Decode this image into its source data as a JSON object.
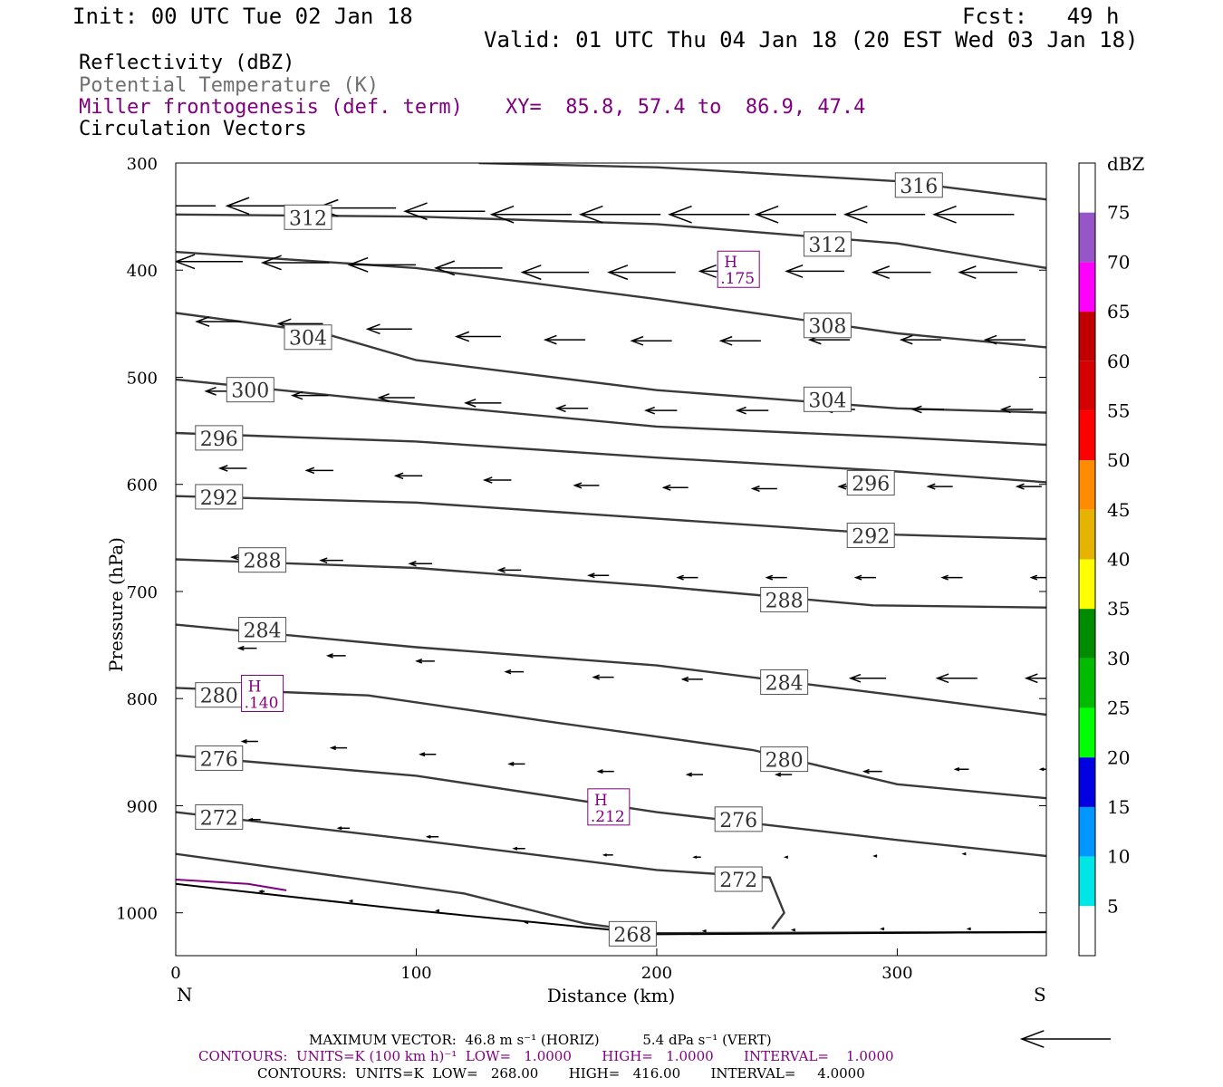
{
  "header": {
    "init": "Init: 00 UTC Tue 02 Jan 18",
    "fcst": "Fcst:   49 h",
    "valid": "Valid: 01 UTC Thu 04 Jan 18 (20 EST Wed 03 Jan 18)"
  },
  "fields": {
    "reflectivity": "Reflectivity (dBZ)",
    "theta": "Potential Temperature (K)",
    "frontogenesis": "Miller frontogenesis (def. term)",
    "xy": "XY=  85.8, 57.4 to  86.9, 47.4",
    "vectors": "Circulation Vectors"
  },
  "footer": {
    "max_vector": "MAXIMUM VECTOR:  46.8 m s⁻¹ (HORIZ)          5.4 dPa s⁻¹ (VERT)",
    "contours_fg": "CONTOURS:  UNITS=K (100 km h)⁻¹  LOW=   1.0000       HIGH=   1.0000       INTERVAL=    1.0000",
    "contours_theta": "CONTOURS:  UNITS=K  LOW=   268.00       HIGH=   416.00       INTERVAL=     4.0000"
  },
  "colors": {
    "axis": "#000000",
    "contour": "#3a3a3a",
    "frontogenesis": "#800080",
    "vector": "#000000"
  },
  "chart_data": {
    "type": "cross-section",
    "xlabel": "Distance (km)",
    "ylabel": "Pressure (hPa)",
    "xlim": [
      0,
      362
    ],
    "ylim": [
      1040,
      300
    ],
    "x_ticks": [
      0,
      100,
      200,
      300
    ],
    "y_ticks": [
      300,
      400,
      500,
      600,
      700,
      800,
      900,
      1000
    ],
    "end_labels": {
      "left": "N",
      "right": "S"
    },
    "colorbar": {
      "label": "dBZ",
      "ticks": [
        75,
        70,
        65,
        60,
        55,
        50,
        45,
        40,
        35,
        30,
        25,
        20,
        15,
        10,
        5
      ],
      "segments": [
        {
          "from": 75,
          "to": 80,
          "color": "#ffffff"
        },
        {
          "from": 70,
          "to": 75,
          "color": "#9656c8"
        },
        {
          "from": 65,
          "to": 70,
          "color": "#ff00ff"
        },
        {
          "from": 60,
          "to": 65,
          "color": "#c00000"
        },
        {
          "from": 55,
          "to": 60,
          "color": "#d60000"
        },
        {
          "from": 50,
          "to": 55,
          "color": "#ff0000"
        },
        {
          "from": 45,
          "to": 50,
          "color": "#ff8c00"
        },
        {
          "from": 40,
          "to": 45,
          "color": "#e6b400"
        },
        {
          "from": 35,
          "to": 40,
          "color": "#ffff00"
        },
        {
          "from": 30,
          "to": 35,
          "color": "#008c00"
        },
        {
          "from": 25,
          "to": 30,
          "color": "#00bb00"
        },
        {
          "from": 20,
          "to": 25,
          "color": "#00ff00"
        },
        {
          "from": 15,
          "to": 20,
          "color": "#0000e0"
        },
        {
          "from": 10,
          "to": 15,
          "color": "#0096ff"
        },
        {
          "from": 5,
          "to": 10,
          "color": "#00e6e6"
        },
        {
          "from": 0,
          "to": 5,
          "color": "#ffffff"
        }
      ]
    },
    "theta_contours": [
      {
        "name": "316",
        "points": [
          [
            126,
            300
          ],
          [
            200,
            304
          ],
          [
            300,
            317
          ],
          [
            362,
            334
          ]
        ],
        "labels": [
          [
            309,
            321
          ]
        ]
      },
      {
        "name": "312",
        "points": [
          [
            0,
            348
          ],
          [
            100,
            350
          ],
          [
            200,
            357
          ],
          [
            300,
            375
          ],
          [
            362,
            398
          ]
        ],
        "labels": [
          [
            55,
            351
          ],
          [
            271,
            376
          ]
        ]
      },
      {
        "name": "308",
        "points": [
          [
            0,
            383
          ],
          [
            100,
            398
          ],
          [
            200,
            427
          ],
          [
            300,
            459
          ],
          [
            362,
            472
          ]
        ],
        "labels": [
          [
            271,
            452
          ]
        ]
      },
      {
        "name": "304",
        "points": [
          [
            0,
            440
          ],
          [
            60,
            458
          ],
          [
            100,
            484
          ],
          [
            200,
            512
          ],
          [
            300,
            529
          ],
          [
            362,
            533
          ]
        ],
        "labels": [
          [
            55,
            463
          ],
          [
            271,
            521
          ]
        ]
      },
      {
        "name": "300",
        "points": [
          [
            0,
            502
          ],
          [
            100,
            525
          ],
          [
            200,
            546
          ],
          [
            300,
            556
          ],
          [
            362,
            563
          ]
        ],
        "labels": [
          [
            31,
            512
          ]
        ]
      },
      {
        "name": "296",
        "points": [
          [
            0,
            552
          ],
          [
            100,
            560
          ],
          [
            200,
            575
          ],
          [
            300,
            588
          ],
          [
            362,
            598
          ]
        ],
        "labels": [
          [
            18,
            557
          ],
          [
            289,
            599
          ]
        ]
      },
      {
        "name": "292",
        "points": [
          [
            0,
            611
          ],
          [
            100,
            617
          ],
          [
            200,
            632
          ],
          [
            300,
            647
          ],
          [
            362,
            651
          ]
        ],
        "labels": [
          [
            18,
            612
          ],
          [
            289,
            648
          ]
        ]
      },
      {
        "name": "288",
        "points": [
          [
            0,
            670
          ],
          [
            100,
            678
          ],
          [
            200,
            695
          ],
          [
            290,
            713
          ],
          [
            362,
            715
          ]
        ],
        "labels": [
          [
            36,
            671
          ],
          [
            253,
            708
          ]
        ]
      },
      {
        "name": "284",
        "points": [
          [
            0,
            731
          ],
          [
            100,
            752
          ],
          [
            200,
            769
          ],
          [
            300,
            797
          ],
          [
            362,
            815
          ]
        ],
        "labels": [
          [
            36,
            736
          ],
          [
            253,
            785
          ]
        ]
      },
      {
        "name": "280",
        "points": [
          [
            0,
            790
          ],
          [
            80,
            797
          ],
          [
            160,
            823
          ],
          [
            240,
            848
          ],
          [
            300,
            880
          ],
          [
            362,
            893
          ]
        ],
        "labels": [
          [
            18,
            797
          ],
          [
            253,
            857
          ]
        ]
      },
      {
        "name": "276",
        "points": [
          [
            0,
            853
          ],
          [
            100,
            872
          ],
          [
            200,
            906
          ],
          [
            300,
            932
          ],
          [
            362,
            947
          ]
        ],
        "labels": [
          [
            18,
            856
          ],
          [
            234,
            913
          ]
        ]
      },
      {
        "name": "272",
        "points": [
          [
            0,
            906
          ],
          [
            100,
            932
          ],
          [
            200,
            960
          ],
          [
            247,
            967
          ],
          [
            253,
            1000
          ],
          [
            248,
            1015
          ]
        ],
        "labels": [
          [
            18,
            911
          ],
          [
            234,
            969
          ]
        ]
      },
      {
        "name": "268",
        "points": [
          [
            0,
            945
          ],
          [
            120,
            982
          ],
          [
            170,
            1010
          ],
          [
            200,
            1019
          ],
          [
            362,
            1018
          ]
        ],
        "labels": [
          [
            190,
            1020
          ]
        ]
      }
    ],
    "ground": [
      [
        0,
        973
      ],
      [
        100,
        998
      ],
      [
        200,
        1020
      ],
      [
        362,
        1018
      ]
    ],
    "frontogenesis_contour": [
      [
        0,
        969
      ],
      [
        30,
        973
      ],
      [
        46,
        979
      ]
    ],
    "maxima": [
      {
        "label": "H",
        "value": ".175",
        "x": 234,
        "p": 400
      },
      {
        "label": "H",
        "value": ".140",
        "x": 36,
        "p": 796
      },
      {
        "label": "H",
        "value": ".212",
        "x": 180,
        "p": 902
      }
    ],
    "vectors": [
      {
        "x": 0,
        "p": 340,
        "u": -36,
        "w": 0
      },
      {
        "x": 38,
        "p": 340,
        "u": -36,
        "w": 0
      },
      {
        "x": 75,
        "p": 342,
        "u": -36,
        "w": 0
      },
      {
        "x": 112,
        "p": 345,
        "u": -36,
        "w": 0
      },
      {
        "x": 148,
        "p": 348,
        "u": -36,
        "w": 0
      },
      {
        "x": 185,
        "p": 348,
        "u": -36,
        "w": 0
      },
      {
        "x": 222,
        "p": 348,
        "u": -36,
        "w": 0
      },
      {
        "x": 258,
        "p": 348,
        "u": -36,
        "w": 0
      },
      {
        "x": 295,
        "p": 348,
        "u": -36,
        "w": 0
      },
      {
        "x": 332,
        "p": 348,
        "u": -36,
        "w": 0
      },
      {
        "x": 14,
        "p": 392,
        "u": -30,
        "w": 0
      },
      {
        "x": 50,
        "p": 393,
        "u": -30,
        "w": 0
      },
      {
        "x": 86,
        "p": 395,
        "u": -30,
        "w": 0
      },
      {
        "x": 122,
        "p": 398,
        "u": -30,
        "w": 0
      },
      {
        "x": 158,
        "p": 402,
        "u": -30,
        "w": 0
      },
      {
        "x": 194,
        "p": 402,
        "u": -30,
        "w": 0
      },
      {
        "x": 230,
        "p": 401,
        "u": -26,
        "w": 0
      },
      {
        "x": 266,
        "p": 401,
        "u": -26,
        "w": 0
      },
      {
        "x": 302,
        "p": 402,
        "u": -26,
        "w": 0
      },
      {
        "x": 338,
        "p": 402,
        "u": -26,
        "w": 0
      },
      {
        "x": 18,
        "p": 448,
        "u": -20,
        "w": 0
      },
      {
        "x": 52,
        "p": 450,
        "u": -20,
        "w": 0
      },
      {
        "x": 89,
        "p": 455,
        "u": -20,
        "w": 0
      },
      {
        "x": 126,
        "p": 462,
        "u": -20,
        "w": 0
      },
      {
        "x": 162,
        "p": 465,
        "u": -18,
        "w": 0
      },
      {
        "x": 198,
        "p": 466,
        "u": -18,
        "w": 0
      },
      {
        "x": 235,
        "p": 466,
        "u": -18,
        "w": 0
      },
      {
        "x": 272,
        "p": 465,
        "u": -18,
        "w": 0
      },
      {
        "x": 310,
        "p": 465,
        "u": -18,
        "w": 0
      },
      {
        "x": 345,
        "p": 465,
        "u": -18,
        "w": 0
      },
      {
        "x": 20,
        "p": 513,
        "u": -16,
        "w": 0
      },
      {
        "x": 56,
        "p": 517,
        "u": -16,
        "w": 0
      },
      {
        "x": 92,
        "p": 519,
        "u": -16,
        "w": 0
      },
      {
        "x": 128,
        "p": 524,
        "u": -16,
        "w": 0
      },
      {
        "x": 165,
        "p": 529,
        "u": -14,
        "w": 0
      },
      {
        "x": 202,
        "p": 531,
        "u": -14,
        "w": 0
      },
      {
        "x": 240,
        "p": 531,
        "u": -14,
        "w": 0
      },
      {
        "x": 276,
        "p": 530,
        "u": -14,
        "w": 0
      },
      {
        "x": 313,
        "p": 530,
        "u": -14,
        "w": 0
      },
      {
        "x": 350,
        "p": 530,
        "u": -14,
        "w": 0
      },
      {
        "x": 24,
        "p": 585,
        "u": -12,
        "w": 0
      },
      {
        "x": 60,
        "p": 587,
        "u": -12,
        "w": 0
      },
      {
        "x": 97,
        "p": 592,
        "u": -12,
        "w": 0
      },
      {
        "x": 134,
        "p": 596,
        "u": -12,
        "w": 0
      },
      {
        "x": 171,
        "p": 601,
        "u": -11,
        "w": 0
      },
      {
        "x": 208,
        "p": 603,
        "u": -11,
        "w": 0
      },
      {
        "x": 245,
        "p": 604,
        "u": -11,
        "w": 0
      },
      {
        "x": 281,
        "p": 602,
        "u": -11,
        "w": 0
      },
      {
        "x": 318,
        "p": 602,
        "u": -11,
        "w": 0
      },
      {
        "x": 355,
        "p": 602,
        "u": -11,
        "w": 0
      },
      {
        "x": 28,
        "p": 668,
        "u": -10,
        "w": 0
      },
      {
        "x": 65,
        "p": 671,
        "u": -10,
        "w": 0
      },
      {
        "x": 102,
        "p": 674,
        "u": -10,
        "w": 0
      },
      {
        "x": 139,
        "p": 680,
        "u": -10,
        "w": 0
      },
      {
        "x": 176,
        "p": 685,
        "u": -9,
        "w": 0
      },
      {
        "x": 213,
        "p": 687,
        "u": -9,
        "w": 0
      },
      {
        "x": 250,
        "p": 687,
        "u": -9,
        "w": 0
      },
      {
        "x": 287,
        "p": 687,
        "u": -9,
        "w": 0
      },
      {
        "x": 323,
        "p": 687,
        "u": -9,
        "w": 0
      },
      {
        "x": 360,
        "p": 687,
        "u": -9,
        "w": 0
      },
      {
        "x": 30,
        "p": 753,
        "u": -8,
        "w": 0
      },
      {
        "x": 67,
        "p": 760,
        "u": -8,
        "w": 0
      },
      {
        "x": 104,
        "p": 765,
        "u": -8,
        "w": 0
      },
      {
        "x": 141,
        "p": 775,
        "u": -8,
        "w": 0
      },
      {
        "x": 178,
        "p": 780,
        "u": -9,
        "w": 0
      },
      {
        "x": 215,
        "p": 782,
        "u": -9,
        "w": 0
      },
      {
        "x": 252,
        "p": 782,
        "u": -12,
        "w": 0
      },
      {
        "x": 288,
        "p": 781,
        "u": -16,
        "w": 0
      },
      {
        "x": 325,
        "p": 781,
        "u": -18,
        "w": 0
      },
      {
        "x": 362,
        "p": 781,
        "u": -18,
        "w": 0
      },
      {
        "x": 31,
        "p": 840,
        "u": -7,
        "w": 0
      },
      {
        "x": 68,
        "p": 846,
        "u": -7,
        "w": 0
      },
      {
        "x": 105,
        "p": 852,
        "u": -7,
        "w": 0
      },
      {
        "x": 142,
        "p": 861,
        "u": -7,
        "w": 0
      },
      {
        "x": 179,
        "p": 868,
        "u": -7,
        "w": 0
      },
      {
        "x": 216,
        "p": 871,
        "u": -7,
        "w": 0
      },
      {
        "x": 253,
        "p": 871,
        "u": -7,
        "w": 0
      },
      {
        "x": 290,
        "p": 868,
        "u": -8,
        "w": 0
      },
      {
        "x": 327,
        "p": 866,
        "u": -6,
        "w": 0
      },
      {
        "x": 362,
        "p": 866,
        "u": -5,
        "w": 0
      },
      {
        "x": 33,
        "p": 913,
        "u": -5,
        "w": 0
      },
      {
        "x": 70,
        "p": 921,
        "u": -5,
        "w": 0
      },
      {
        "x": 107,
        "p": 929,
        "u": -5,
        "w": 0
      },
      {
        "x": 143,
        "p": 940,
        "u": -5,
        "w": 0
      },
      {
        "x": 180,
        "p": 946,
        "u": -4,
        "w": 0
      },
      {
        "x": 217,
        "p": 948,
        "u": -3,
        "w": 0
      },
      {
        "x": 254,
        "p": 948,
        "u": -1,
        "w": 0
      },
      {
        "x": 291,
        "p": 947,
        "u": -1,
        "w": 0
      },
      {
        "x": 328,
        "p": 945,
        "u": -1,
        "w": 0
      },
      {
        "x": 36,
        "p": 980,
        "u": -2,
        "w": 0
      },
      {
        "x": 73,
        "p": 989,
        "u": -1,
        "w": 0
      },
      {
        "x": 109,
        "p": 998,
        "u": -1,
        "w": 0
      },
      {
        "x": 146,
        "p": 1009,
        "u": -1,
        "w": 0
      },
      {
        "x": 220,
        "p": 1017,
        "u": -1,
        "w": 0
      },
      {
        "x": 257,
        "p": 1016,
        "u": -1,
        "w": 0
      },
      {
        "x": 294,
        "p": 1015,
        "u": -1,
        "w": 0
      },
      {
        "x": 330,
        "p": 1015,
        "u": -1,
        "w": 0
      }
    ]
  }
}
